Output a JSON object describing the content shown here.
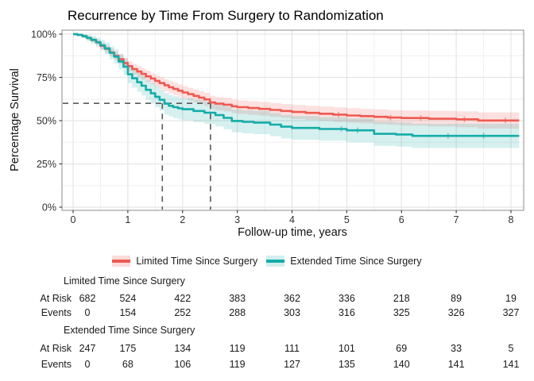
{
  "title": "Recurrence by Time From Surgery to Randomization",
  "plot": {
    "y_axis": {
      "label": "Percentage Survival",
      "ticks": [
        {
          "value": 100,
          "label": "100%"
        },
        {
          "value": 75,
          "label": "75%"
        },
        {
          "value": 50,
          "label": "50%"
        },
        {
          "value": 25,
          "label": "25%"
        },
        {
          "value": 0,
          "label": "0%"
        }
      ]
    },
    "x_axis": {
      "label": "Follow-up time, years",
      "ticks": [
        {
          "value": 0,
          "label": "0"
        },
        {
          "value": 1,
          "label": "1"
        },
        {
          "value": 2,
          "label": "2"
        },
        {
          "value": 3,
          "label": "3"
        },
        {
          "value": 4,
          "label": "4"
        },
        {
          "value": 5,
          "label": "5"
        },
        {
          "value": 6,
          "label": "6"
        },
        {
          "value": 7,
          "label": "7"
        },
        {
          "value": 8,
          "label": "8"
        }
      ]
    }
  },
  "colors": {
    "limited_line": "#EE5A52",
    "limited_band": "#FADCDA",
    "extended_line": "#14ACA7",
    "extended_band": "#D2EFEE",
    "dashed_reference": "#5a5a5a",
    "grid_major": "#e5e5e5",
    "grid_minor": "#f0f0f0",
    "panel_border": "#8c8c8c",
    "tick_text": "#303030"
  },
  "legend": {
    "entries": [
      {
        "label": "Limited Time Since Surgery"
      },
      {
        "label": "Extended Time Since Surgery"
      }
    ]
  },
  "chart_data": {
    "type": "line",
    "subtype": "kaplan-meier-step",
    "title": "Recurrence by Time From Surgery to Randomization",
    "xlabel": "Follow-up time, years",
    "ylabel": "Percentage Survival",
    "xlim": [
      0,
      8.23
    ],
    "ylim": [
      0,
      100
    ],
    "grid": true,
    "legend_position": "bottom",
    "annotation": {
      "dashed_horizontal_percent": 60,
      "dashed_vertical_times_years": [
        1.63,
        2.51
      ]
    },
    "series": [
      {
        "name": "Limited Time Since Surgery",
        "color": "#EE5A52",
        "band_color": "#EE5A52",
        "band_opacity": 0.18,
        "points": [
          [
            0,
            100,
            100,
            100
          ],
          [
            0.08,
            99.6,
            99.1,
            100
          ],
          [
            0.17,
            98.8,
            98,
            99.6
          ],
          [
            0.25,
            97.8,
            96.7,
            98.9
          ],
          [
            0.33,
            96.6,
            95.3,
            97.9
          ],
          [
            0.42,
            95.2,
            93.6,
            96.8
          ],
          [
            0.5,
            93.2,
            91.3,
            95.1
          ],
          [
            0.58,
            91.5,
            89.4,
            93.6
          ],
          [
            0.67,
            89.4,
            87.1,
            91.7
          ],
          [
            0.75,
            87.5,
            85,
            90
          ],
          [
            0.83,
            85.5,
            82.9,
            88.1
          ],
          [
            0.92,
            83.3,
            80.5,
            86.1
          ],
          [
            1,
            81.5,
            78.6,
            84.4
          ],
          [
            1.08,
            79.8,
            76.8,
            82.8
          ],
          [
            1.17,
            78.4,
            75.3,
            81.5
          ],
          [
            1.25,
            77,
            73.8,
            80.2
          ],
          [
            1.33,
            75.6,
            72.3,
            78.9
          ],
          [
            1.42,
            74.3,
            71,
            77.6
          ],
          [
            1.5,
            73,
            69.6,
            76.4
          ],
          [
            1.58,
            71.7,
            68.3,
            75.1
          ],
          [
            1.67,
            70.4,
            66.9,
            73.9
          ],
          [
            1.75,
            69.3,
            65.8,
            72.8
          ],
          [
            1.83,
            68.3,
            64.7,
            71.9
          ],
          [
            1.92,
            67.3,
            63.7,
            70.9
          ],
          [
            2,
            66.3,
            62.7,
            69.9
          ],
          [
            2.1,
            65.3,
            61.6,
            69
          ],
          [
            2.2,
            64.3,
            60.6,
            68
          ],
          [
            2.3,
            63.3,
            59.6,
            67
          ],
          [
            2.4,
            62.3,
            58.5,
            66.1
          ],
          [
            2.5,
            60.5,
            56.7,
            64.3
          ],
          [
            2.6,
            59.8,
            56,
            63.6
          ],
          [
            2.75,
            59.2,
            55.3,
            63.1
          ],
          [
            2.9,
            58.3,
            54.4,
            62.2
          ],
          [
            3,
            57.8,
            53.9,
            61.7
          ],
          [
            3.2,
            57.3,
            53.3,
            61.3
          ],
          [
            3.4,
            56.8,
            52.8,
            60.8
          ],
          [
            3.6,
            56.2,
            52.2,
            60.2
          ],
          [
            3.8,
            55.6,
            51.6,
            59.6
          ],
          [
            4,
            55,
            50.9,
            59.1
          ],
          [
            4.25,
            54.5,
            50.4,
            58.6
          ],
          [
            4.5,
            54,
            49.9,
            58.1
          ],
          [
            4.75,
            53.5,
            49.3,
            57.7
          ],
          [
            5,
            53,
            48.8,
            57.2
          ],
          [
            5.25,
            52.6,
            48.4,
            56.8
          ],
          [
            5.5,
            52.2,
            47.9,
            56.5
          ],
          [
            5.75,
            51.8,
            47.5,
            56.1
          ],
          [
            6,
            51.5,
            47.1,
            55.9
          ],
          [
            6.5,
            51.1,
            46.6,
            55.6
          ],
          [
            7,
            50.8,
            46.2,
            55.4
          ],
          [
            7.4,
            50.1,
            45.4,
            54.8
          ],
          [
            8.15,
            50.1,
            45.4,
            54.8
          ]
        ],
        "censor_times": [
          4.85,
          5.8,
          6.35,
          7.15,
          7.9
        ]
      },
      {
        "name": "Extended Time Since Surgery",
        "color": "#14ACA7",
        "band_color": "#14ACA7",
        "band_opacity": 0.18,
        "points": [
          [
            0,
            100,
            100,
            100
          ],
          [
            0.08,
            99.6,
            98.9,
            100
          ],
          [
            0.17,
            98.8,
            97.5,
            100
          ],
          [
            0.25,
            97.8,
            96,
            99.6
          ],
          [
            0.33,
            96.7,
            94.5,
            98.9
          ],
          [
            0.42,
            95.3,
            92.7,
            97.9
          ],
          [
            0.5,
            93.6,
            90.6,
            96.6
          ],
          [
            0.58,
            91.8,
            88.4,
            95.2
          ],
          [
            0.67,
            89.2,
            85.4,
            93
          ],
          [
            0.75,
            87,
            82.9,
            91.1
          ],
          [
            0.83,
            84.2,
            79.7,
            88.7
          ],
          [
            0.92,
            81.2,
            76.4,
            86
          ],
          [
            1,
            76.8,
            71.6,
            82
          ],
          [
            1.08,
            74.5,
            69.1,
            79.9
          ],
          [
            1.17,
            72.2,
            66.6,
            77.8
          ],
          [
            1.25,
            70.2,
            64.5,
            75.9
          ],
          [
            1.33,
            67.8,
            62,
            73.6
          ],
          [
            1.42,
            65.8,
            59.9,
            71.7
          ],
          [
            1.5,
            63.8,
            57.8,
            69.8
          ],
          [
            1.58,
            62,
            55.9,
            68.1
          ],
          [
            1.67,
            59.8,
            53.6,
            66
          ],
          [
            1.75,
            58.6,
            52.4,
            64.8
          ],
          [
            1.83,
            57.8,
            51.5,
            64.1
          ],
          [
            1.92,
            57.1,
            50.8,
            63.4
          ],
          [
            2,
            56.6,
            50.2,
            63
          ],
          [
            2.2,
            55.6,
            49.2,
            62
          ],
          [
            2.4,
            54.6,
            48.1,
            61.1
          ],
          [
            2.6,
            53.2,
            46.7,
            59.7
          ],
          [
            2.75,
            51.6,
            45,
            58.2
          ],
          [
            2.9,
            49.8,
            43.2,
            56.4
          ],
          [
            3.1,
            49.3,
            42.6,
            56
          ],
          [
            3.3,
            48.9,
            42.2,
            55.6
          ],
          [
            3.6,
            47.7,
            41,
            54.4
          ],
          [
            3.8,
            46.5,
            39.7,
            53.3
          ],
          [
            4,
            45.8,
            39,
            52.6
          ],
          [
            4.5,
            45.2,
            38.4,
            52
          ],
          [
            5,
            44.4,
            37.5,
            51.3
          ],
          [
            5.5,
            42.4,
            35.4,
            49.4
          ],
          [
            5.9,
            42,
            35,
            49
          ],
          [
            6.2,
            41.2,
            34.2,
            48.2
          ],
          [
            8.15,
            41.2,
            34.2,
            48.2
          ]
        ],
        "censor_times": [
          4.9,
          5.2,
          6.85,
          7.5
        ]
      }
    ]
  },
  "risk_table": {
    "times": [
      0,
      1,
      2,
      3,
      4,
      5,
      6,
      7,
      8
    ],
    "row_labels": {
      "at_risk": "At Risk",
      "events": "Events"
    },
    "groups": [
      {
        "name": "Limited Time Since Surgery",
        "at_risk": [
          682,
          524,
          422,
          383,
          362,
          336,
          218,
          89,
          19
        ],
        "events": [
          0,
          154,
          252,
          288,
          303,
          316,
          325,
          326,
          327
        ]
      },
      {
        "name": "Extended Time Since Surgery",
        "at_risk": [
          247,
          175,
          134,
          119,
          111,
          101,
          69,
          33,
          5
        ],
        "events": [
          0,
          68,
          106,
          119,
          127,
          135,
          140,
          141,
          141
        ]
      }
    ]
  }
}
